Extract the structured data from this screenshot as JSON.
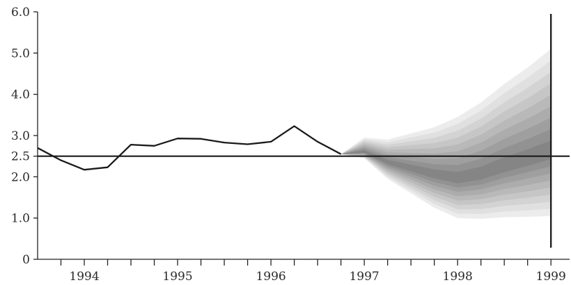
{
  "chart_data": {
    "type": "line",
    "title": "",
    "xlabel": "",
    "ylabel": "",
    "xlim": [
      1993.5,
      1999.2
    ],
    "ylim": [
      0,
      6
    ],
    "x_ticks": [
      {
        "value": 1994,
        "label": "1994"
      },
      {
        "value": 1995,
        "label": "1995"
      },
      {
        "value": 1996,
        "label": "1996"
      },
      {
        "value": 1997,
        "label": "1997"
      },
      {
        "value": 1998,
        "label": "1998"
      },
      {
        "value": 1999,
        "label": "1999"
      }
    ],
    "y_ticks": [
      {
        "value": 0,
        "label": "0"
      },
      {
        "value": 1.0,
        "label": "1.0"
      },
      {
        "value": 2.0,
        "label": "2.0"
      },
      {
        "value": 2.5,
        "label": "2.5"
      },
      {
        "value": 3.0,
        "label": "3.0"
      },
      {
        "value": 4.0,
        "label": "4.0"
      },
      {
        "value": 5.0,
        "label": "5.0"
      },
      {
        "value": 6.0,
        "label": "6.0"
      }
    ],
    "target_line": 2.5,
    "vertical_marker_x": 1999,
    "series": [
      {
        "x": [
          1993.5,
          1993.75,
          1994.0,
          1994.25,
          1994.5,
          1994.75,
          1995.0,
          1995.25,
          1995.5,
          1995.75,
          1996.0,
          1996.25,
          1996.5,
          1996.75
        ],
        "values": [
          2.7,
          2.4,
          2.17,
          2.23,
          2.78,
          2.75,
          2.93,
          2.92,
          2.83,
          2.79,
          2.85,
          3.23,
          2.85,
          2.55
        ]
      }
    ],
    "fan": {
      "x": [
        1996.75,
        1997.0,
        1997.25,
        1997.5,
        1997.75,
        1998.0,
        1998.25,
        1998.5,
        1998.75,
        1999.0
      ],
      "central": [
        2.55,
        2.6,
        2.35,
        2.2,
        2.05,
        1.95,
        2.05,
        2.25,
        2.42,
        2.6
      ],
      "upper": [
        2.55,
        2.95,
        2.9,
        3.05,
        3.2,
        3.45,
        3.8,
        4.25,
        4.65,
        5.1
      ],
      "lower": [
        2.55,
        2.45,
        1.95,
        1.6,
        1.25,
        1.0,
        0.98,
        1.02,
        1.03,
        1.05
      ],
      "bands": 9,
      "colors": [
        "#ececec",
        "#e0e0e0",
        "#d3d3d3",
        "#c6c6c6",
        "#b9b9b9",
        "#acacac",
        "#9f9f9f",
        "#929292",
        "#858585"
      ]
    }
  }
}
